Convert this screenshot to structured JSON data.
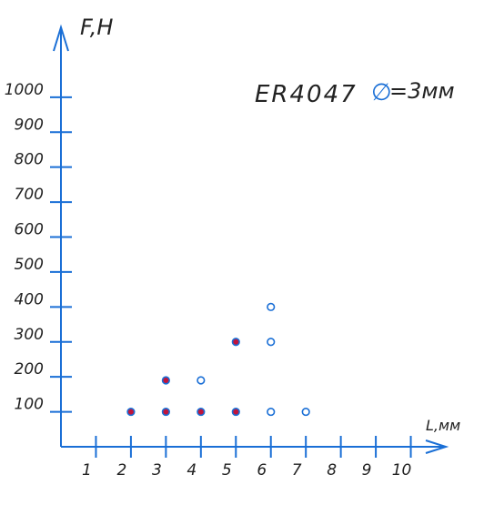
{
  "chart_data": {
    "type": "scatter",
    "title": "ER4047",
    "symbol": "∅",
    "annotation": "=3мм",
    "y_label": "F,H",
    "x_label": "L,мм",
    "axis_color": "#1a6fd6",
    "xlim": [
      0,
      11
    ],
    "ylim": [
      0,
      1200
    ],
    "xticks": [
      1,
      2,
      3,
      4,
      5,
      6,
      7,
      8,
      9,
      10
    ],
    "yticks": [
      100,
      200,
      300,
      400,
      500,
      600,
      700,
      800,
      900,
      1000
    ],
    "series": [
      {
        "color": "#1a6fd6",
        "fill": "#c0143c",
        "x": [
          2,
          3,
          3,
          4,
          5,
          5
        ],
        "values": [
          100,
          100,
          190,
          100,
          100,
          300
        ]
      },
      {
        "color": "#1a6fd6",
        "fill": "#ffffff",
        "x": [
          4,
          6,
          7,
          6,
          6
        ],
        "values": [
          190,
          100,
          100,
          300,
          400
        ]
      }
    ]
  }
}
